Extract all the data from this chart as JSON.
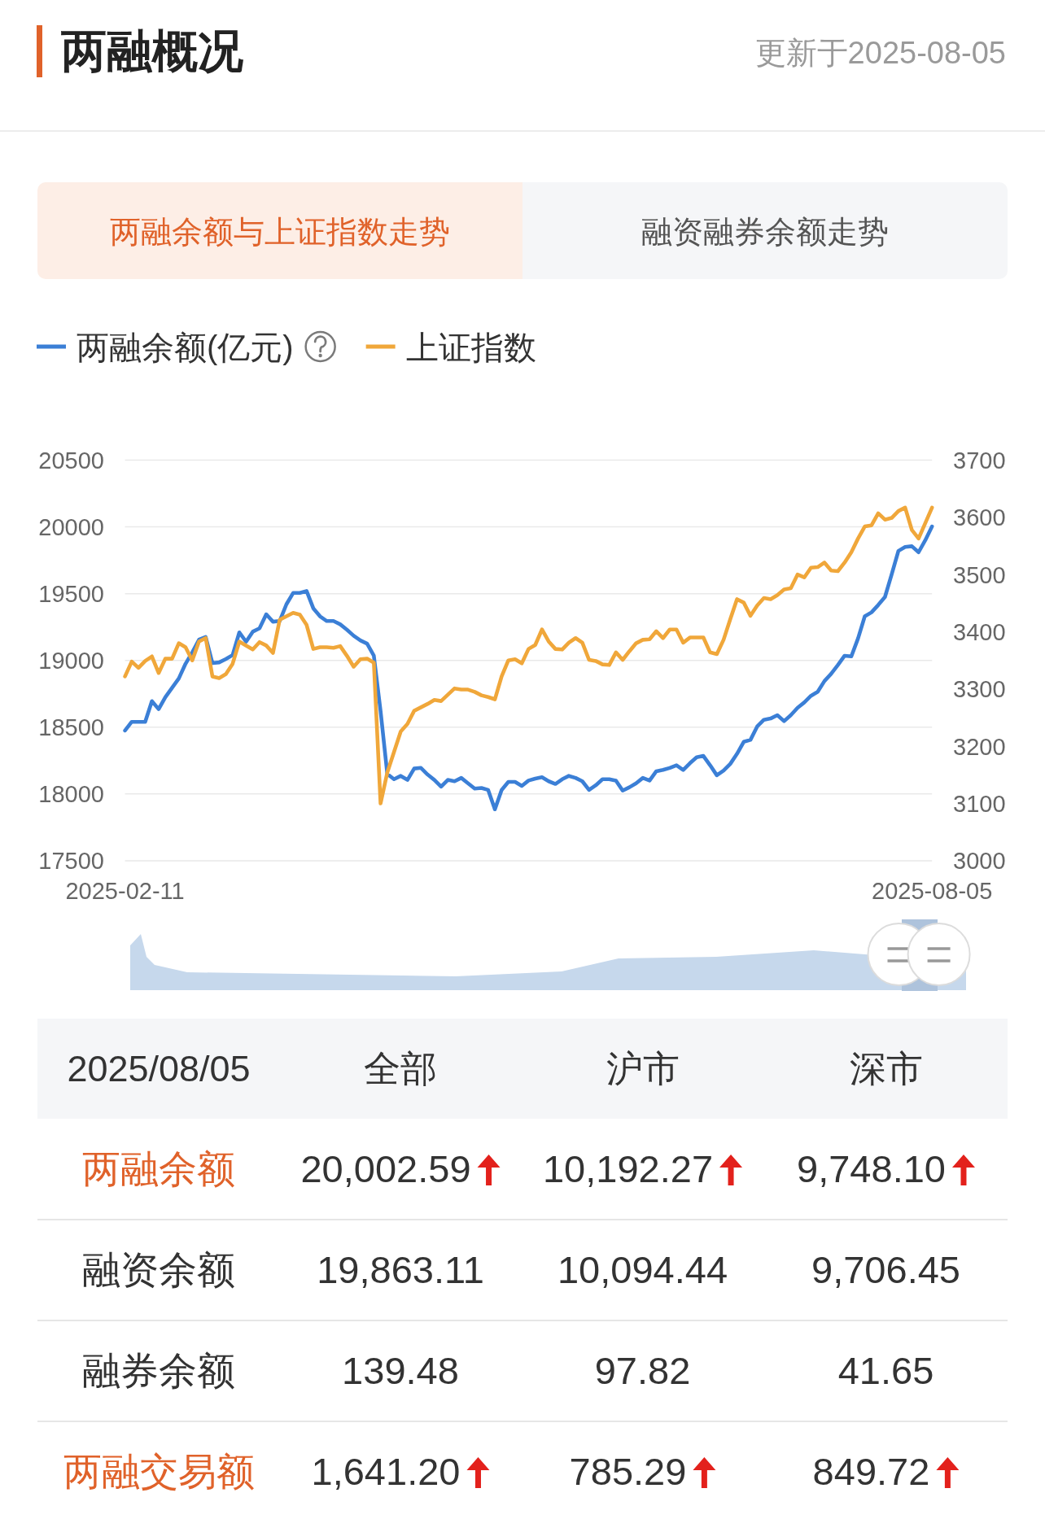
{
  "chart_data": [
    {
      "type": "line",
      "title": "两融概况",
      "subtitle": "更新于2025-08-05",
      "annotations": [
        "两融余额与上证指数走势",
        "融资融券余额走势"
      ],
      "categories": [
        "2025-02-11",
        null,
        null,
        null,
        null,
        null,
        null,
        null,
        null,
        null,
        null,
        null,
        null,
        null,
        null,
        null,
        null,
        null,
        null,
        null,
        null,
        null,
        null,
        null,
        null,
        null,
        null,
        null,
        null,
        null,
        null,
        null,
        null,
        null,
        null,
        null,
        null,
        null,
        null,
        null,
        null,
        null,
        null,
        null,
        null,
        null,
        null,
        null,
        null,
        null,
        null,
        null,
        null,
        null,
        null,
        null,
        null,
        null,
        null,
        null,
        null,
        null,
        null,
        null,
        null,
        null,
        null,
        null,
        null,
        null,
        null,
        null,
        null,
        null,
        null,
        null,
        null,
        null,
        null,
        null,
        null,
        null,
        null,
        null,
        null,
        null,
        null,
        null,
        null,
        null,
        null,
        null,
        null,
        null,
        null,
        null,
        null,
        null,
        null,
        null,
        null,
        null,
        null,
        null,
        null,
        null,
        null,
        null,
        null,
        null,
        null,
        null,
        null,
        null,
        null,
        null,
        null,
        null,
        null,
        null,
        "2025-08-05"
      ],
      "series": [
        {
          "name": "两融余额(亿元)",
          "color": "#3b7fd6",
          "values": [
            18475,
            18540,
            18540,
            18540,
            18695,
            18635,
            18725,
            18795,
            18865,
            18975,
            19060,
            19155,
            19175,
            18980,
            18985,
            19010,
            19040,
            19210,
            19140,
            19215,
            19240,
            19345,
            19290,
            19295,
            19420,
            19505,
            19505,
            19520,
            19390,
            19330,
            19295,
            19295,
            19270,
            19230,
            19185,
            19150,
            19125,
            19035,
            18620,
            18150,
            18110,
            18135,
            18105,
            18190,
            18195,
            18145,
            18105,
            18055,
            18105,
            18095,
            18120,
            18080,
            18040,
            18045,
            18030,
            17885,
            18030,
            18090,
            18090,
            18060,
            18100,
            18115,
            18125,
            18095,
            18075,
            18110,
            18135,
            18120,
            18095,
            18030,
            18065,
            18110,
            18110,
            18100,
            18025,
            18050,
            18080,
            18120,
            18100,
            18170,
            18180,
            18195,
            18215,
            18180,
            18230,
            18275,
            18285,
            18215,
            18140,
            18175,
            18225,
            18300,
            18390,
            18405,
            18505,
            18555,
            18565,
            18590,
            18545,
            18590,
            18645,
            18685,
            18735,
            18765,
            18845,
            18900,
            18965,
            19035,
            19030,
            19165,
            19330,
            19360,
            19415,
            19475,
            19645,
            19820,
            19850,
            19855,
            19810,
            19900,
            20003
          ]
        },
        {
          "name": "上证指数",
          "color": "#f0a73a",
          "axis": "y2",
          "values": [
            3322,
            3348,
            3337,
            3349,
            3357,
            3328,
            3353,
            3353,
            3380,
            3373,
            3350,
            3383,
            3389,
            3322,
            3319,
            3326,
            3344,
            3383,
            3376,
            3369,
            3382,
            3376,
            3363,
            3421,
            3427,
            3433,
            3430,
            3412,
            3370,
            3373,
            3373,
            3372,
            3375,
            3358,
            3339,
            3352,
            3353,
            3346,
            3100,
            3154,
            3190,
            3226,
            3239,
            3262,
            3268,
            3274,
            3281,
            3279,
            3290,
            3301,
            3299,
            3299,
            3295,
            3289,
            3286,
            3282,
            3322,
            3350,
            3352,
            3345,
            3370,
            3377,
            3404,
            3383,
            3370,
            3369,
            3381,
            3389,
            3381,
            3351,
            3349,
            3343,
            3342,
            3364,
            3351,
            3366,
            3380,
            3386,
            3387,
            3401,
            3389,
            3404,
            3404,
            3381,
            3390,
            3390,
            3390,
            3364,
            3361,
            3386,
            3422,
            3457,
            3451,
            3428,
            3446,
            3459,
            3457,
            3464,
            3474,
            3476,
            3500,
            3495,
            3512,
            3513,
            3521,
            3507,
            3506,
            3521,
            3539,
            3563,
            3584,
            3586,
            3607,
            3596,
            3599,
            3611,
            3617,
            3578,
            3563,
            3590,
            3617
          ]
        }
      ],
      "ylim": [
        17500,
        20500
      ],
      "yticks": [
        17500,
        18000,
        18500,
        19000,
        19500,
        20000,
        20500
      ],
      "y2lim": [
        3000,
        3700
      ],
      "y2ticks": [
        3000,
        3100,
        3200,
        3300,
        3400,
        3500,
        3600,
        3700
      ],
      "grid": "y",
      "legend": "top left"
    },
    {
      "type": "other",
      "annotations": [
        "2025/08/05",
        "全部",
        "沪市",
        "深市",
        "两融余额",
        "20,002.59",
        "10,192.27",
        "9,748.10",
        "融资余额",
        "19,863.11",
        "10,094.44",
        "9,706.45",
        "融券余额",
        "139.48",
        "97.82",
        "41.65",
        "两融交易额",
        "1,641.20",
        "785.29",
        "849.72"
      ]
    }
  ]
}
